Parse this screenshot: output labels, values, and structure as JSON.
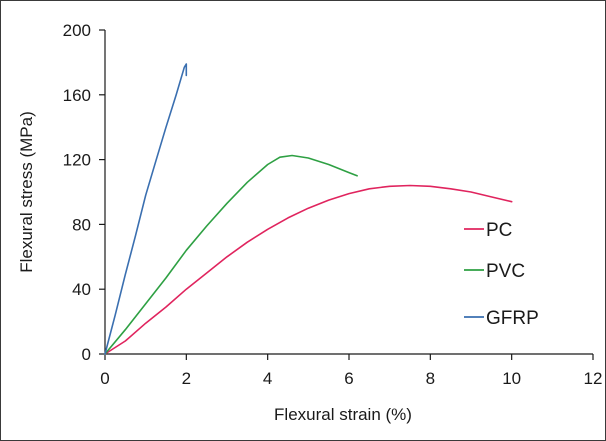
{
  "chart_data": {
    "type": "line",
    "xlabel": "Flexural strain (%)",
    "ylabel": "Flexural stress (MPa)",
    "xlim": [
      0,
      12
    ],
    "ylim": [
      0,
      200
    ],
    "x_ticks": [
      "0",
      "2",
      "4",
      "6",
      "8",
      "10",
      "12"
    ],
    "y_ticks": [
      "0",
      "40",
      "80",
      "120",
      "160",
      "200"
    ],
    "grid": false,
    "legend_position": "right",
    "series": [
      {
        "name": "PC",
        "color": "#e0245e",
        "points": [
          [
            0,
            0
          ],
          [
            0.5,
            8
          ],
          [
            1,
            19
          ],
          [
            1.5,
            29
          ],
          [
            2,
            40
          ],
          [
            2.5,
            50
          ],
          [
            3,
            60
          ],
          [
            3.5,
            69
          ],
          [
            4,
            77
          ],
          [
            4.5,
            84
          ],
          [
            5,
            90
          ],
          [
            5.5,
            95
          ],
          [
            6,
            99
          ],
          [
            6.5,
            102
          ],
          [
            7,
            103.5
          ],
          [
            7.5,
            104
          ],
          [
            8,
            103.5
          ],
          [
            8.5,
            102
          ],
          [
            9,
            100
          ],
          [
            9.5,
            97
          ],
          [
            10,
            94
          ]
        ]
      },
      {
        "name": "PVC",
        "color": "#2ea043",
        "points": [
          [
            0,
            0
          ],
          [
            0.5,
            15
          ],
          [
            1,
            31
          ],
          [
            1.5,
            47
          ],
          [
            2,
            64
          ],
          [
            2.5,
            79
          ],
          [
            3,
            93
          ],
          [
            3.5,
            106
          ],
          [
            4,
            117
          ],
          [
            4.3,
            121.5
          ],
          [
            4.6,
            122.5
          ],
          [
            5,
            121
          ],
          [
            5.5,
            117
          ],
          [
            6,
            112
          ],
          [
            6.2,
            110
          ]
        ]
      },
      {
        "name": "GFRP",
        "color": "#3a6fb0",
        "points": [
          [
            0,
            0
          ],
          [
            0.25,
            24
          ],
          [
            0.5,
            49
          ],
          [
            0.75,
            73
          ],
          [
            1,
            98
          ],
          [
            1.25,
            119
          ],
          [
            1.5,
            140
          ],
          [
            1.75,
            160
          ],
          [
            1.95,
            177
          ],
          [
            2,
            179
          ],
          [
            2,
            172
          ]
        ]
      }
    ]
  }
}
